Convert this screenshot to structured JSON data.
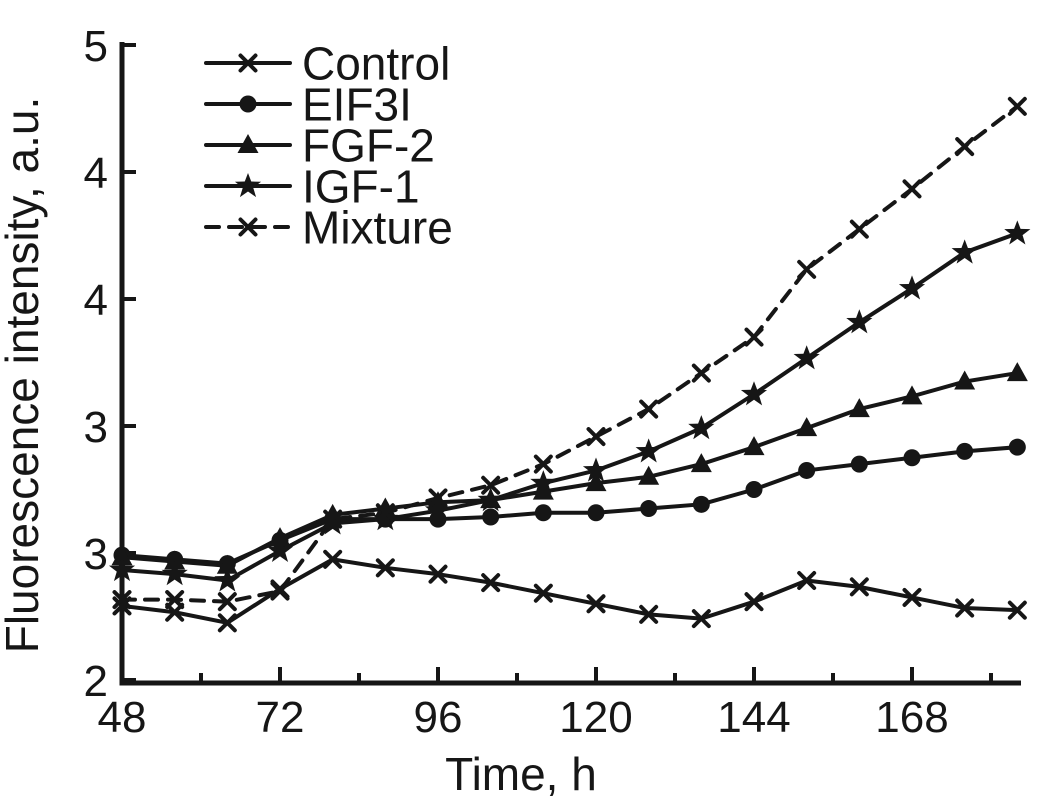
{
  "figure": {
    "background": "#ffffff",
    "line_color": "#161616"
  },
  "chart_data": {
    "type": "line",
    "title": "",
    "xlabel": "Time, h",
    "ylabel": "Fluorescence intensity, a.u.",
    "xlim": [
      48,
      184.6
    ],
    "ylim": [
      2,
      5
    ],
    "grid": false,
    "legend_position": "top-left",
    "x_ticks_major": [
      48,
      72,
      96,
      120,
      144,
      168
    ],
    "x_ticks_minor": [
      60,
      84,
      108,
      132,
      156,
      180
    ],
    "y_ticks": [
      {
        "value": 5.0,
        "label": "5"
      },
      {
        "value": 4.4,
        "label": "4"
      },
      {
        "value": 3.8,
        "label": "4"
      },
      {
        "value": 3.2,
        "label": "3"
      },
      {
        "value": 2.6,
        "label": "3"
      },
      {
        "value": 2.0,
        "label": "2"
      }
    ],
    "x": [
      48,
      56,
      64,
      72,
      80,
      88,
      96,
      104,
      112,
      120,
      128,
      136,
      144,
      152,
      160,
      168,
      176,
      184
    ],
    "series": [
      {
        "name": "Control",
        "marker": "x",
        "line_style": "solid",
        "values": [
          2.35,
          2.32,
          2.27,
          2.43,
          2.57,
          2.53,
          2.5,
          2.46,
          2.41,
          2.36,
          2.31,
          2.29,
          2.37,
          2.47,
          2.44,
          2.39,
          2.34,
          2.33
        ]
      },
      {
        "name": "EIF3I",
        "marker": "circle",
        "line_style": "solid",
        "values": [
          2.59,
          2.57,
          2.55,
          2.66,
          2.76,
          2.76,
          2.76,
          2.77,
          2.79,
          2.79,
          2.81,
          2.83,
          2.9,
          2.99,
          3.02,
          3.05,
          3.08,
          3.1
        ]
      },
      {
        "name": "FGF-2",
        "marker": "triangle",
        "line_style": "solid",
        "values": [
          2.58,
          2.56,
          2.54,
          2.67,
          2.78,
          2.81,
          2.84,
          2.85,
          2.89,
          2.93,
          2.96,
          3.02,
          3.1,
          3.19,
          3.28,
          3.34,
          3.41,
          3.45
        ]
      },
      {
        "name": "IGF-1",
        "marker": "star",
        "line_style": "solid",
        "values": [
          2.52,
          2.5,
          2.47,
          2.61,
          2.74,
          2.76,
          2.8,
          2.85,
          2.93,
          2.99,
          3.08,
          3.19,
          3.35,
          3.52,
          3.69,
          3.85,
          4.02,
          4.11
        ]
      },
      {
        "name": "Mixture",
        "marker": "x",
        "line_style": "dashed",
        "values": [
          2.38,
          2.38,
          2.37,
          2.42,
          2.76,
          2.79,
          2.86,
          2.92,
          3.02,
          3.15,
          3.28,
          3.45,
          3.62,
          3.94,
          4.13,
          4.32,
          4.52,
          4.71
        ]
      }
    ]
  }
}
